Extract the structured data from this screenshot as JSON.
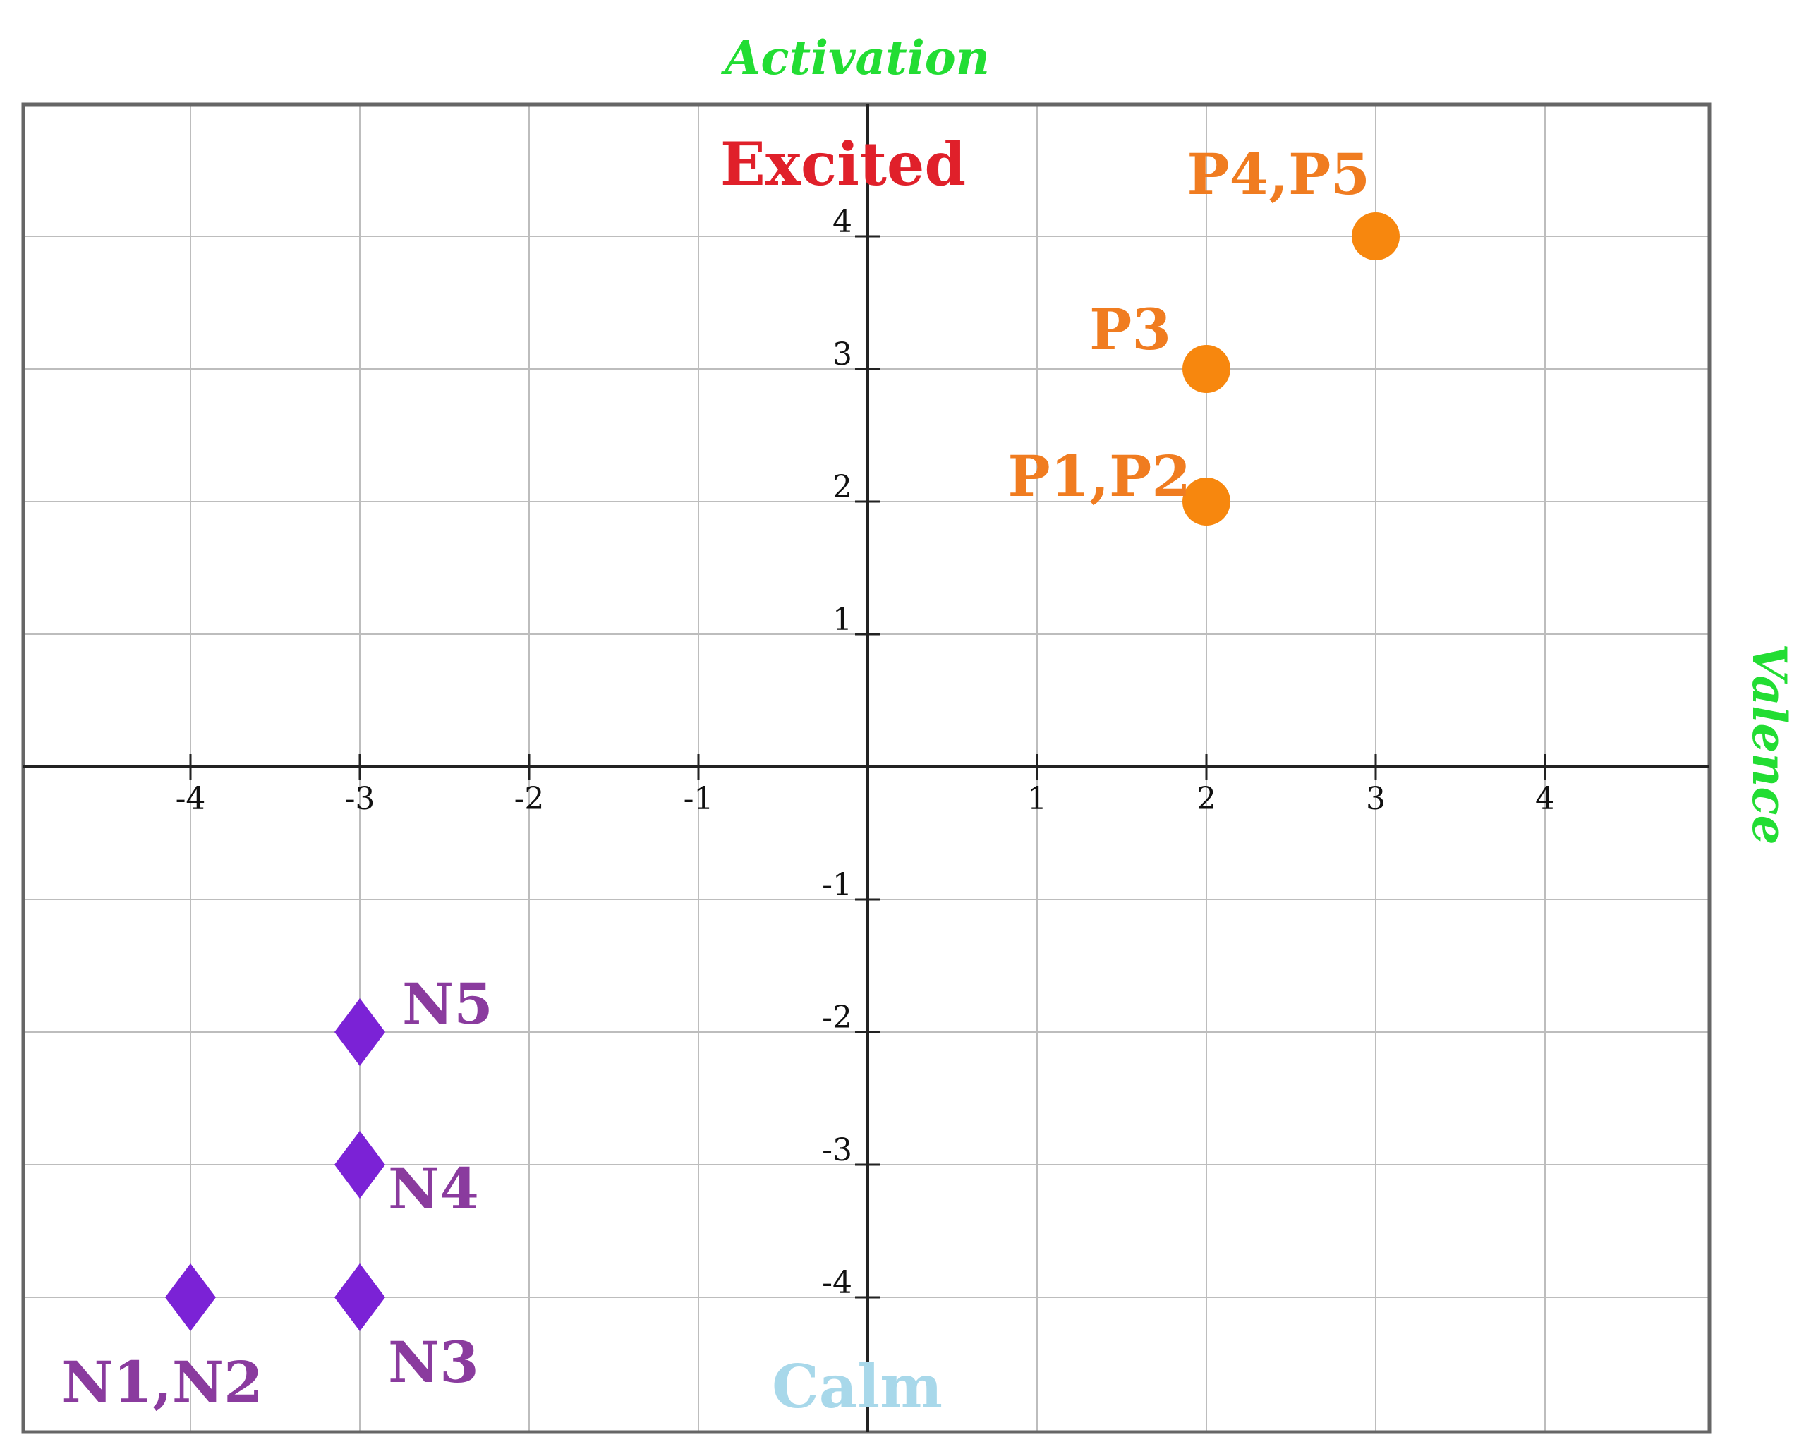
{
  "chart_data": {
    "type": "scatter",
    "title": "",
    "xlabel": "Valence",
    "ylabel": "Activation",
    "xlim": [
      -5,
      5
    ],
    "ylim": [
      -5,
      5
    ],
    "grid": true,
    "x_ticks": [
      "-4",
      "-3",
      "-2",
      "-1",
      "1",
      "2",
      "3",
      "4"
    ],
    "y_ticks": [
      "4",
      "3",
      "2",
      "1",
      "-1",
      "-2",
      "-3",
      "-4"
    ],
    "quadrant_labels": {
      "top": "Excited",
      "bottom": "Calm"
    },
    "series": [
      {
        "marker": "circle",
        "color": "#f7870e",
        "points": [
          {
            "label": "P1,P2",
            "x": 2,
            "y": 2
          },
          {
            "label": "P3",
            "x": 2,
            "y": 3
          },
          {
            "label": "P4,P5",
            "x": 3,
            "y": 4
          }
        ]
      },
      {
        "marker": "diamond",
        "color": "#7b22d6",
        "points": [
          {
            "label": "N1,N2",
            "x": -4,
            "y": -4
          },
          {
            "label": "N3",
            "x": -3,
            "y": -4
          },
          {
            "label": "N4",
            "x": -3,
            "y": -3
          },
          {
            "label": "N5",
            "x": -3,
            "y": -2
          }
        ]
      }
    ],
    "colors": {
      "axis_name": "#22dd33",
      "excited": "#e0202a",
      "calm": "#a8d8ea",
      "positive_label": "#f07c20",
      "negative_label": "#8a3b9e",
      "grid": "#bdbdbd",
      "frame": "#666666",
      "axis": "#222222"
    }
  }
}
